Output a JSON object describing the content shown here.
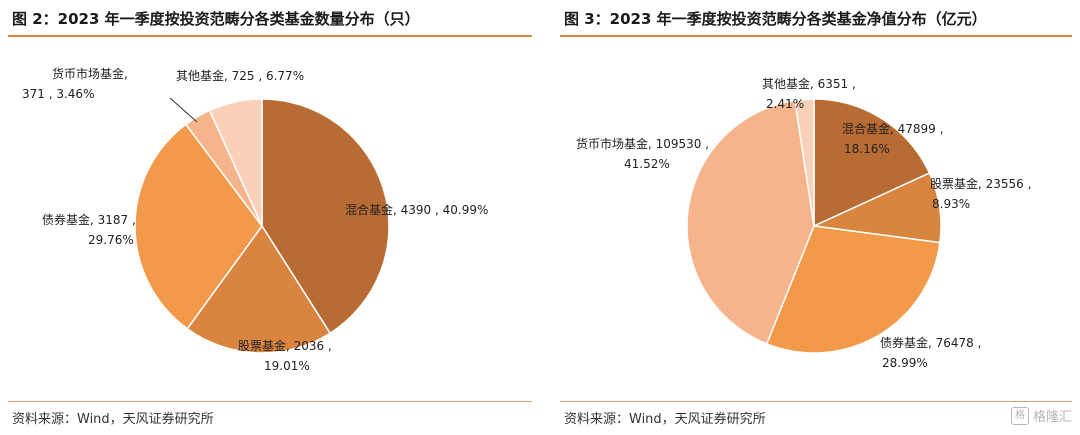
{
  "chart_data": [
    {
      "type": "pie",
      "title": "图 2：2023 年一季度按投资范畴分各类基金数量分布（只）",
      "slices": [
        {
          "name": "混合基金",
          "value": 4390,
          "pct": "40.99%",
          "color": "#b96b34"
        },
        {
          "name": "股票基金",
          "value": 2036,
          "pct": "19.01%",
          "color": "#d9853f"
        },
        {
          "name": "债券基金",
          "value": 3187,
          "pct": "29.76%",
          "color": "#f29a4a"
        },
        {
          "name": "货币市场基金",
          "value": 371,
          "pct": "3.46%",
          "color": "#f6b48c"
        },
        {
          "name": "其他基金",
          "value": 725,
          "pct": "6.77%",
          "color": "#fad0b9"
        }
      ],
      "labels": [
        {
          "line1": "混合基金, 4390 , 40.99%",
          "line2": ""
        },
        {
          "line1": "股票基金, 2036 ,",
          "line2": "19.01%"
        },
        {
          "line1": "债券基金, 3187 ,",
          "line2": "29.76%"
        },
        {
          "line1": "货币市场基金,",
          "line2": "371 , 3.46%"
        },
        {
          "line1": "其他基金, 725 , 6.77%",
          "line2": ""
        }
      ],
      "source": "资料来源：Wind，天风证券研究所"
    },
    {
      "type": "pie",
      "title": "图 3：2023 年一季度按投资范畴分各类基金净值分布（亿元）",
      "slices": [
        {
          "name": "混合基金",
          "value": 47899,
          "pct": "18.16%",
          "color": "#b96b34"
        },
        {
          "name": "股票基金",
          "value": 23556,
          "pct": "8.93%",
          "color": "#d9853f"
        },
        {
          "name": "债券基金",
          "value": 76478,
          "pct": "28.99%",
          "color": "#f29a4a"
        },
        {
          "name": "货币市场基金",
          "value": 109530,
          "pct": "41.52%",
          "color": "#f6b48c"
        },
        {
          "name": "其他基金",
          "value": 6351,
          "pct": "2.41%",
          "color": "#fad0b9"
        }
      ],
      "labels": [
        {
          "line1": "混合基金, 47899 ,",
          "line2": "18.16%"
        },
        {
          "line1": "股票基金, 23556 ,",
          "line2": "8.93%"
        },
        {
          "line1": "债券基金, 76478 ,",
          "line2": "28.99%"
        },
        {
          "line1": "货币市场基金, 109530 ,",
          "line2": "41.52%"
        },
        {
          "line1": "其他基金, 6351 ,",
          "line2": "2.41%"
        }
      ],
      "source": "资料来源：Wind，天风证券研究所"
    }
  ],
  "watermark": {
    "icon": "格",
    "text": "格隆汇"
  }
}
